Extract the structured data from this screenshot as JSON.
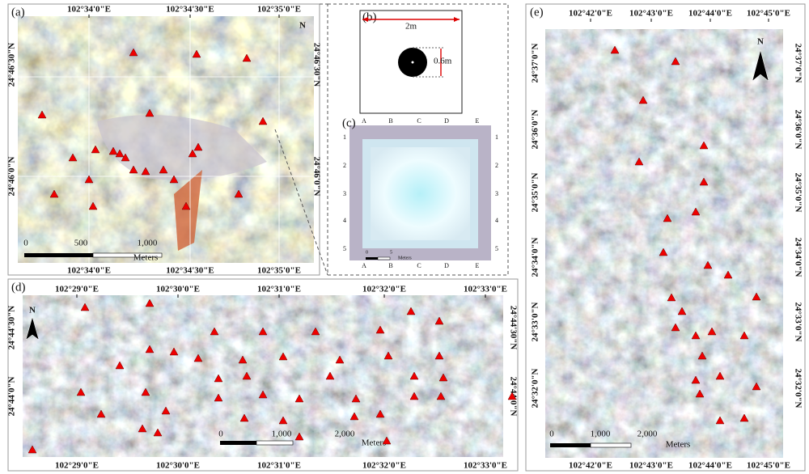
{
  "panels": {
    "a": {
      "label": "(a)",
      "x_ticks": [
        "102°34'0\"E",
        "102°34'30\"E",
        "102°35'0\"E"
      ],
      "y_ticks": [
        "24°46'30\"N",
        "24°46'0\"N"
      ],
      "north": "N",
      "scale": [
        "0",
        "500",
        "1,000",
        "Meters"
      ]
    },
    "b": {
      "label": "(b)",
      "width": "2m",
      "diameter": "0.6m"
    },
    "c": {
      "label": "(c)",
      "columns": [
        "A",
        "B",
        "C",
        "D",
        "E"
      ],
      "rows": [
        "1",
        "2",
        "3",
        "4",
        "5"
      ],
      "scale": [
        "0",
        "5",
        "Meters"
      ]
    },
    "d": {
      "label": "(d)",
      "x_ticks": [
        "102°29'0\"E",
        "102°30'0\"E",
        "102°31'0\"E",
        "102°32'0\"E",
        "102°33'0\"E"
      ],
      "y_ticks": [
        "24°44'30\"N",
        "24°44'0\"N"
      ],
      "north": "N",
      "scale": [
        "0",
        "1,000",
        "2,000",
        "Meters"
      ]
    },
    "e": {
      "label": "(e)",
      "x_ticks": [
        "102°42'0\"E",
        "102°43'0\"E",
        "102°44'0\"E",
        "102°45'0\"E"
      ],
      "y_ticks": [
        "24°37'0\"N",
        "24°36'0\"N",
        "24°35'0\"N",
        "24°34'0\"N",
        "24°33'0\"N",
        "24°32'0\"N"
      ],
      "north": "N",
      "scale": [
        "0",
        "1,000",
        "2,000",
        "Meters"
      ]
    }
  }
}
